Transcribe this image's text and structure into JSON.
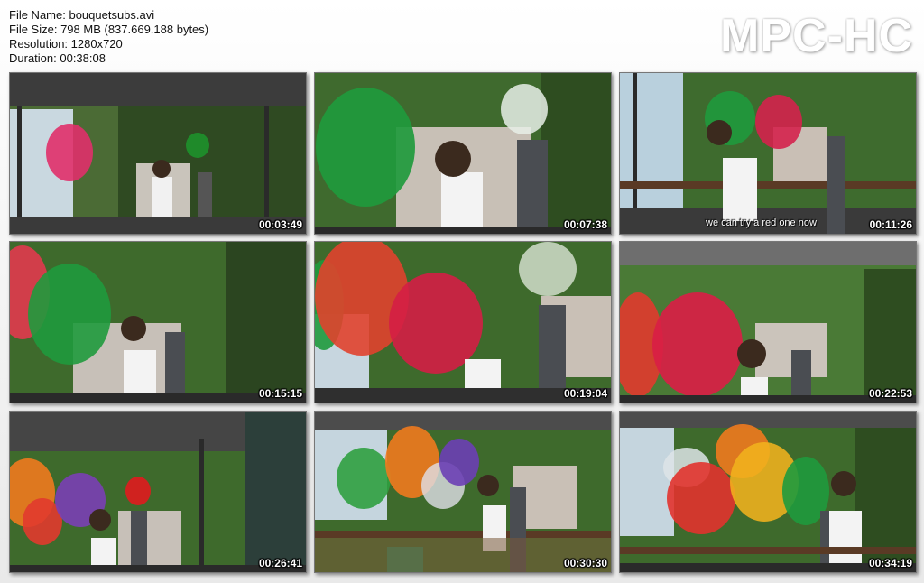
{
  "file_info": {
    "name": "File Name: bouquetsubs.avi",
    "size": "File Size: 798 MB (837.669.188 bytes)",
    "resolution": "Resolution: 1280x720",
    "duration": "Duration: 00:38:08"
  },
  "logo": "MPC-HC",
  "thumbnails": [
    {
      "timestamp": "00:03:49",
      "subtitle": ""
    },
    {
      "timestamp": "00:07:38",
      "subtitle": ""
    },
    {
      "timestamp": "00:11:26",
      "subtitle": "we can try a red one now"
    },
    {
      "timestamp": "00:15:15",
      "subtitle": ""
    },
    {
      "timestamp": "00:19:04",
      "subtitle": ""
    },
    {
      "timestamp": "00:22:53",
      "subtitle": ""
    },
    {
      "timestamp": "00:26:41",
      "subtitle": ""
    },
    {
      "timestamp": "00:30:30",
      "subtitle": ""
    },
    {
      "timestamp": "00:34:19",
      "subtitle": ""
    }
  ]
}
